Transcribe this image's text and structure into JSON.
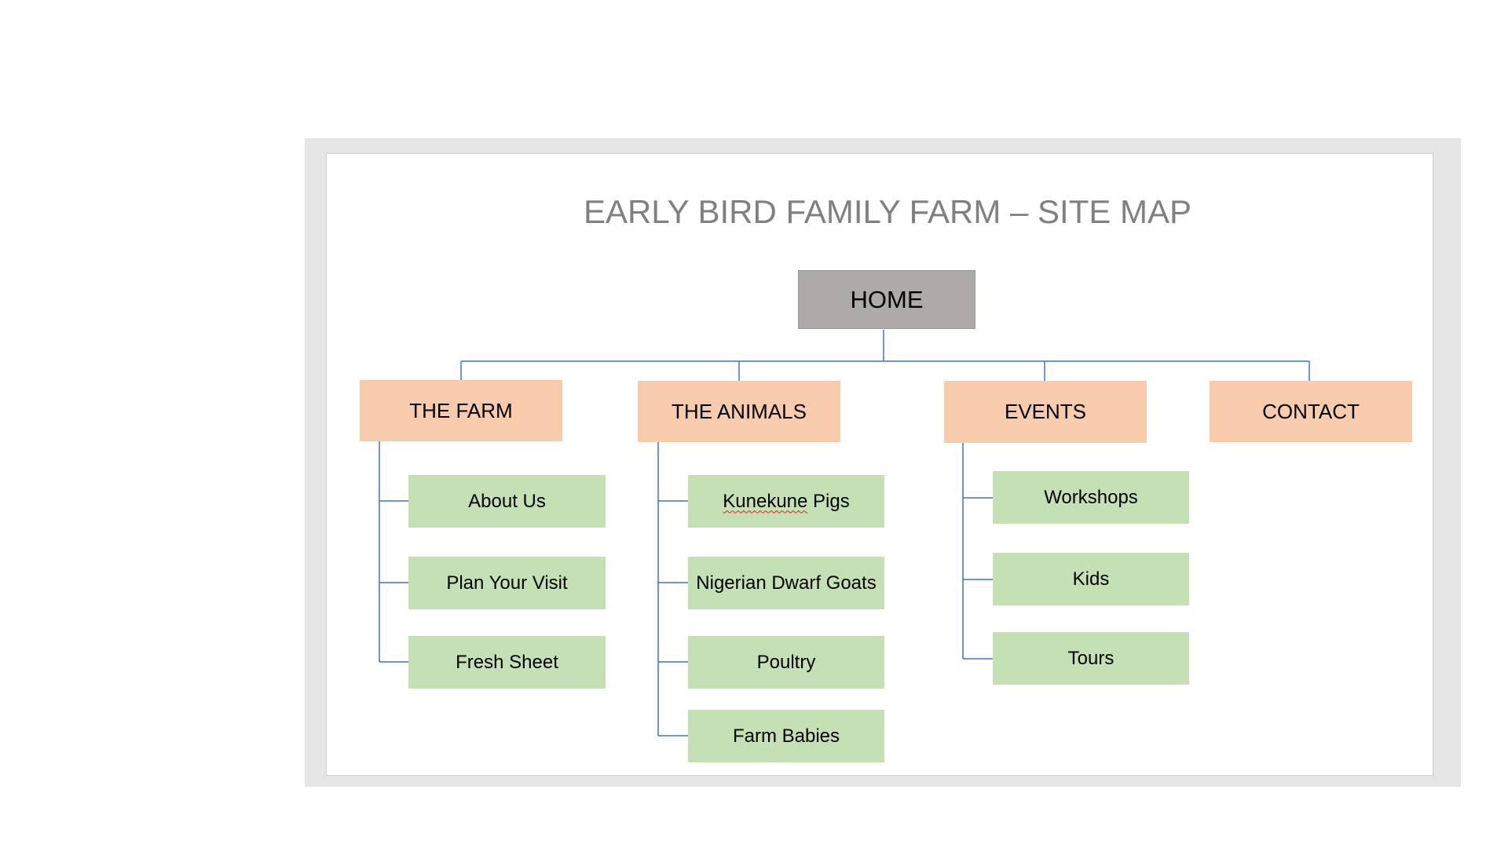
{
  "diagram": {
    "title": "EARLY BIRD FAMILY FARM – SITE MAP",
    "home": "HOME",
    "sections": [
      {
        "label": "THE FARM",
        "children": [
          "About Us",
          "Plan Your Visit",
          "Fresh Sheet"
        ]
      },
      {
        "label": "THE ANIMALS",
        "children": [
          "Kunekune",
          "Nigerian Dwarf Goats",
          "Poultry",
          "Farm Babies"
        ],
        "first_child_suffix": " Pigs"
      },
      {
        "label": "EVENTS",
        "children": [
          "Workshops",
          "Kids",
          "Tours"
        ]
      },
      {
        "label": "CONTACT",
        "children": []
      }
    ]
  },
  "colors": {
    "home_fill": "#aeaaaa",
    "section_fill": "#f8cbad",
    "page_fill": "#c5e0b4",
    "connector": "#4472c4",
    "title_text": "#808080"
  }
}
